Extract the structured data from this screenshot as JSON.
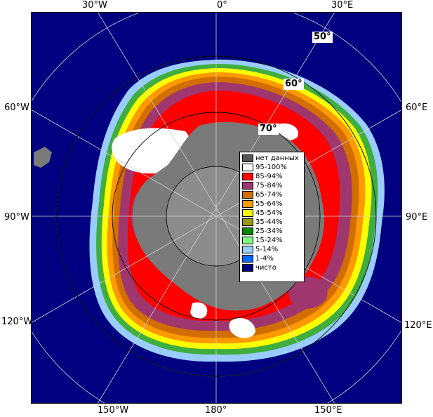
{
  "meridians": {
    "top": [
      "30°W",
      "0°",
      "30°E"
    ],
    "bottom": [
      "150°W",
      "180°",
      "150°E"
    ],
    "left": [
      "60°W",
      "90°W",
      "120°W"
    ],
    "right": [
      "60°E",
      "90°E",
      "120°E"
    ]
  },
  "parallels": [
    "50°",
    "60°",
    "70°"
  ],
  "legend": [
    {
      "label": "нет данных",
      "color": "#555555"
    },
    {
      "label": "95-100%",
      "color": "#ffffff"
    },
    {
      "label": "85-94%",
      "color": "#ff0000"
    },
    {
      "label": "75-84%",
      "color": "#a0366e"
    },
    {
      "label": "65-74%",
      "color": "#d26d00"
    },
    {
      "label": "55-64%",
      "color": "#ff9900"
    },
    {
      "label": "45-54%",
      "color": "#ffff00"
    },
    {
      "label": "35-44%",
      "color": "#9a9a00"
    },
    {
      "label": "25-34%",
      "color": "#008a00"
    },
    {
      "label": "15-24%",
      "color": "#7fff7f"
    },
    {
      "label": "5-14%",
      "color": "#99ccff"
    },
    {
      "label": "1-4%",
      "color": "#0066ff"
    },
    {
      "label": "чисто",
      "color": "#000080"
    }
  ]
}
